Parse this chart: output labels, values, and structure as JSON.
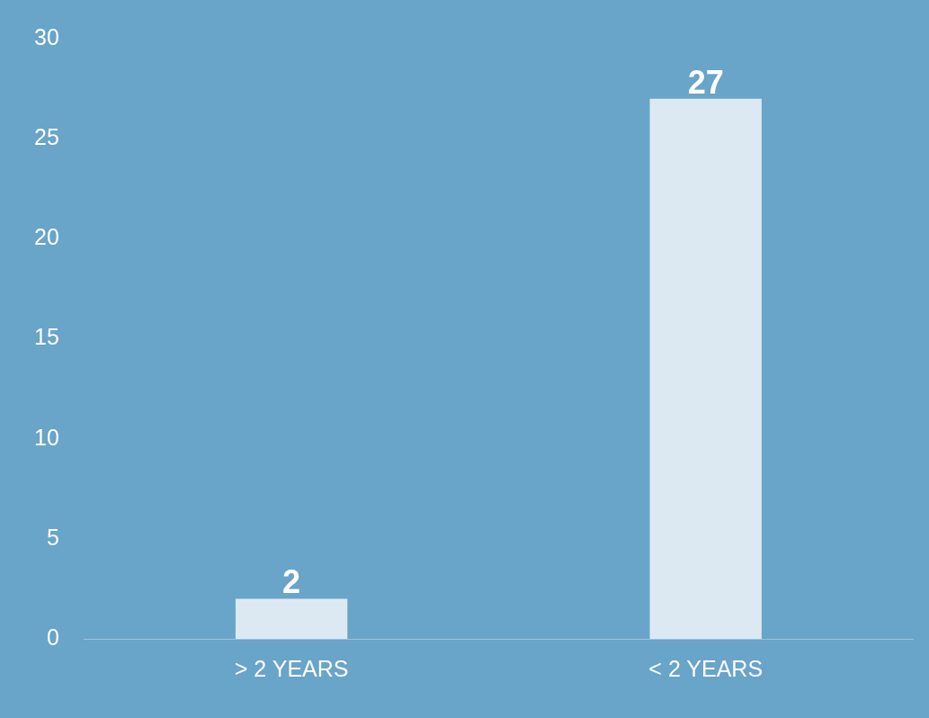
{
  "chart_data": {
    "type": "bar",
    "categories": [
      "> 2 YEARS",
      "< 2 YEARS"
    ],
    "values": [
      2,
      27
    ],
    "color": "#dce9f3",
    "ylim": [
      0,
      30
    ],
    "yticks": [
      0,
      5,
      10,
      15,
      20,
      25,
      30
    ],
    "data_labels": true
  }
}
